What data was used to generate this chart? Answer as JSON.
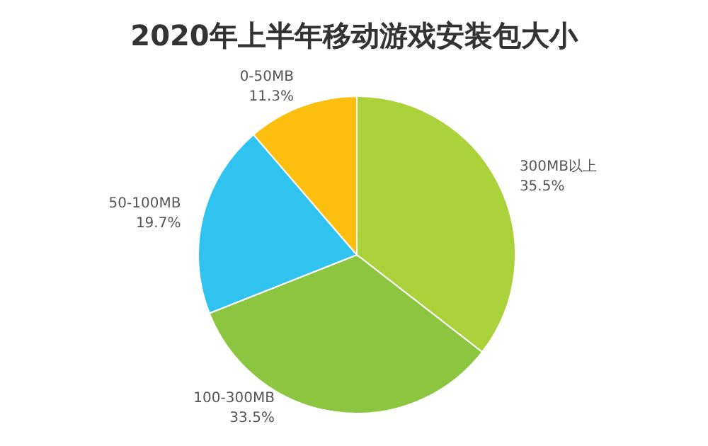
{
  "chart_data": {
    "type": "pie",
    "title": "2020年上半年移动游戏安装包大小",
    "categories": [
      "300MB以上",
      "100-300MB",
      "50-100MB",
      "0-50MB"
    ],
    "values": [
      35.5,
      33.5,
      19.7,
      11.3
    ],
    "colors": [
      "#abd13b",
      "#8cc540",
      "#31c3f0",
      "#fdbf0f"
    ],
    "value_labels": [
      "35.5%",
      "33.5%",
      "19.7%",
      "11.3%"
    ]
  }
}
